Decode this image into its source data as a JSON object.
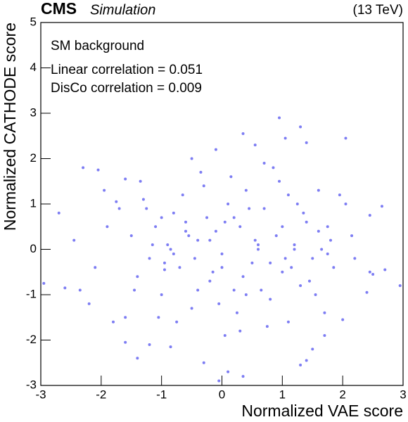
{
  "chart_data": {
    "type": "scatter",
    "brand": "CMS",
    "subtitle": "Simulation",
    "energy": "(13 TeV)",
    "annotations": [
      "SM background",
      "Linear correlation = 0.051",
      "DisCo correlation = 0.009"
    ],
    "x_label": "Normalized VAE score",
    "y_label": "Normalized CATHODE score",
    "xlim": [
      -3,
      3
    ],
    "ylim": [
      -3,
      5
    ],
    "xticks": [
      -3,
      -2,
      -1,
      0,
      1,
      2,
      3
    ],
    "yticks": [
      -3,
      -2,
      -1,
      0,
      1,
      2,
      3,
      4,
      5
    ],
    "series": [
      {
        "name": "SM background",
        "color": "#5c5cf0",
        "x": [
          -2.95,
          -2.6,
          -2.7,
          -2.45,
          -2.3,
          -2.05,
          -2.2,
          -1.95,
          -1.75,
          -1.6,
          -1.8,
          -1.6,
          -1.6,
          -1.4,
          -1.2,
          -0.85,
          -0.3,
          -0.05,
          0.1,
          0.35,
          0.95,
          1.05,
          1.3,
          2.05,
          1.4,
          0.35,
          0.55,
          1.4,
          1.3,
          1.5,
          1.7,
          2.0,
          2.4,
          2.45,
          2.7,
          2.95,
          2.65,
          2.45,
          2.05,
          1.95,
          1.75,
          2.2,
          2.5,
          -0.95,
          -1.0,
          -1.5,
          -1.4,
          -1.3,
          -1.2,
          -1.1,
          -1.0,
          -0.9,
          -0.8,
          -0.7,
          -0.6,
          -0.5,
          -0.4,
          -0.3,
          -0.2,
          -0.1,
          0.0,
          0.1,
          0.2,
          0.3,
          0.4,
          0.5,
          0.6,
          0.7,
          0.8,
          0.9,
          1.0,
          1.1,
          1.2,
          1.3,
          1.4,
          1.5,
          1.6,
          1.7,
          1.8,
          -1.45,
          -1.25,
          -1.05,
          -0.85,
          -0.65,
          -0.45,
          -0.25,
          -0.05,
          0.15,
          0.35,
          0.55,
          0.75,
          0.95,
          1.15,
          1.35,
          1.55,
          1.75,
          -1.35,
          -1.15,
          -0.95,
          -0.75,
          -0.55,
          -0.35,
          -0.15,
          0.05,
          0.25,
          0.45,
          0.65,
          0.85,
          1.05,
          1.25,
          1.45,
          1.65,
          -0.8,
          -0.6,
          -0.4,
          -0.2,
          0.0,
          0.2,
          0.4,
          0.6,
          0.8,
          1.0,
          1.2,
          -1.9,
          -2.1,
          -2.35,
          1.85,
          2.15,
          -0.5,
          0.3,
          0.7,
          -0.1,
          1.1,
          -1.7,
          1.6,
          0.05
        ],
        "y": [
          -0.75,
          -0.85,
          0.8,
          0.2,
          1.8,
          1.75,
          -1.2,
          1.3,
          1.05,
          1.55,
          -1.6,
          -1.5,
          -2.05,
          -2.4,
          -2.1,
          -2.15,
          -2.5,
          -2.9,
          -2.7,
          -2.8,
          2.9,
          2.45,
          2.7,
          2.45,
          2.35,
          2.55,
          2.3,
          -2.45,
          -2.55,
          -2.2,
          -1.9,
          -1.55,
          -0.95,
          -0.5,
          -0.45,
          -0.8,
          0.95,
          0.75,
          1.0,
          1.2,
          -0.1,
          -0.2,
          -0.55,
          -0.45,
          0.7,
          0.3,
          -0.6,
          1.1,
          -0.2,
          0.5,
          -1.0,
          0.1,
          0.8,
          -0.4,
          0.6,
          -1.3,
          0.2,
          1.4,
          -0.7,
          0.4,
          -0.1,
          1.0,
          -0.9,
          0.5,
          1.3,
          -0.3,
          0.0,
          0.9,
          -1.1,
          0.3,
          -0.5,
          1.2,
          0.1,
          -0.8,
          0.6,
          -0.2,
          0.4,
          -1.4,
          0.2,
          -0.9,
          0.9,
          -1.5,
          0.0,
          1.2,
          -0.2,
          0.7,
          -1.2,
          1.6,
          -0.6,
          0.2,
          -1.7,
          1.5,
          -0.4,
          0.8,
          -1.0,
          0.5,
          1.5,
          0.1,
          -0.3,
          -1.6,
          0.3,
          1.7,
          -0.5,
          0.6,
          -1.4,
          0.9,
          -0.9,
          1.8,
          -0.2,
          1.0,
          -0.7,
          0.0,
          -0.1,
          0.4,
          -0.9,
          0.2,
          -0.4,
          0.7,
          -1.0,
          0.1,
          -0.3,
          0.5,
          0.0,
          0.5,
          -0.4,
          -0.9,
          -0.4,
          0.3,
          2.0,
          -1.8,
          1.9,
          2.2,
          -1.6,
          0.9,
          1.3,
          -1.9
        ]
      }
    ]
  }
}
